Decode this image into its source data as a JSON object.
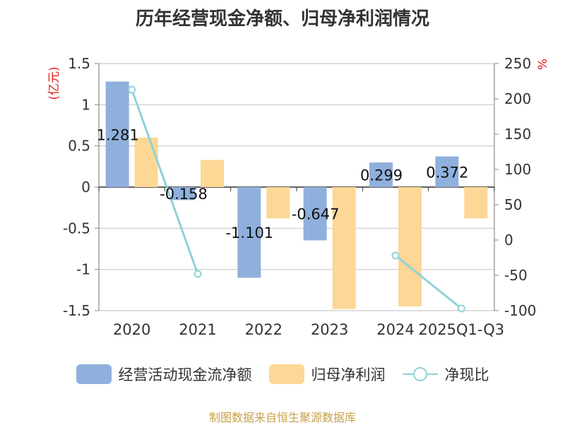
{
  "chart_data": {
    "type": "bar",
    "title": "历年经营现金净额、归母净利润情况",
    "categories": [
      "2020",
      "2021",
      "2022",
      "2023",
      "2024",
      "2025Q1-Q3"
    ],
    "series": [
      {
        "name": "经营活动现金流净额",
        "type": "bar",
        "axis": "left",
        "values": [
          1.281,
          -0.158,
          -1.101,
          -0.647,
          0.299,
          0.372
        ],
        "labels": [
          "1.281",
          "-0.158",
          "-1.101",
          "-0.647",
          "0.299",
          "0.372"
        ]
      },
      {
        "name": "归母净利润",
        "type": "bar",
        "axis": "left",
        "values": [
          0.6,
          0.33,
          -0.38,
          -1.48,
          -1.45,
          -0.38
        ]
      },
      {
        "name": "净现比",
        "type": "line",
        "axis": "right",
        "values": [
          213,
          -48,
          null,
          null,
          -22,
          -97
        ]
      }
    ],
    "y_left": {
      "unit": "(亿元)",
      "ylim": [
        -1.5,
        1.5
      ],
      "ticks": [
        1.5,
        1,
        0.5,
        0,
        -0.5,
        -1,
        -1.5
      ],
      "tick_labels": [
        "1.5",
        "1",
        "0.5",
        "0",
        "-0.5",
        "-1",
        "-1.5"
      ]
    },
    "y_right": {
      "unit": "%",
      "ylim": [
        -100,
        250
      ],
      "ticks": [
        250,
        200,
        150,
        100,
        50,
        0,
        -50,
        -100
      ],
      "tick_labels": [
        "250",
        "200",
        "150",
        "100",
        "50",
        "0",
        "-50",
        "-100"
      ]
    },
    "colors": {
      "cash": "#8fb0dc",
      "profit": "#fdd795",
      "ratio": "#8ed3d8"
    },
    "grid": true,
    "legend": "bottom"
  },
  "legend": {
    "items": [
      {
        "label": "经营活动现金流净额"
      },
      {
        "label": "归母净利润"
      },
      {
        "label": "净现比"
      }
    ]
  },
  "source": "制图数据来自恒生聚源数据库"
}
